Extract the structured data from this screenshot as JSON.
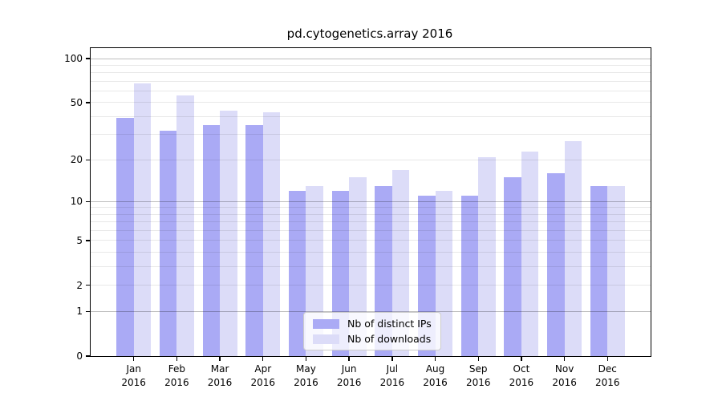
{
  "chart_data": {
    "type": "bar",
    "title": "pd.cytogenetics.array 2016",
    "categories": [
      "Jan",
      "Feb",
      "Mar",
      "Apr",
      "May",
      "Jun",
      "Jul",
      "Aug",
      "Sep",
      "Oct",
      "Nov",
      "Dec"
    ],
    "category_year": "2016",
    "series": [
      {
        "name": "Nb of distinct IPs",
        "color": "#aaaaf5",
        "values": [
          39,
          32,
          35,
          35,
          12,
          12,
          13,
          11,
          11,
          15,
          16,
          13
        ]
      },
      {
        "name": "Nb of downloads",
        "color": "#dcdcf8",
        "values": [
          68,
          56,
          44,
          43,
          13,
          15,
          17,
          12,
          21,
          23,
          27,
          13
        ]
      }
    ],
    "xlabel": "",
    "ylabel": "",
    "yscale": "log1p",
    "ylim": [
      0,
      118
    ],
    "ytick_values": [
      0,
      1,
      2,
      5,
      10,
      20,
      50,
      100
    ],
    "grid": {
      "major_values": [
        1,
        10,
        100
      ],
      "minor_values": [
        2,
        3,
        4,
        5,
        6,
        7,
        8,
        9,
        20,
        30,
        40,
        50,
        60,
        70,
        80,
        90
      ],
      "major_color": "#bdbdbd",
      "minor_color": "#e8e8e8"
    },
    "legend_position": "inside-bottom-center",
    "axis_color": "#000000",
    "background_color": "#ffffff"
  }
}
